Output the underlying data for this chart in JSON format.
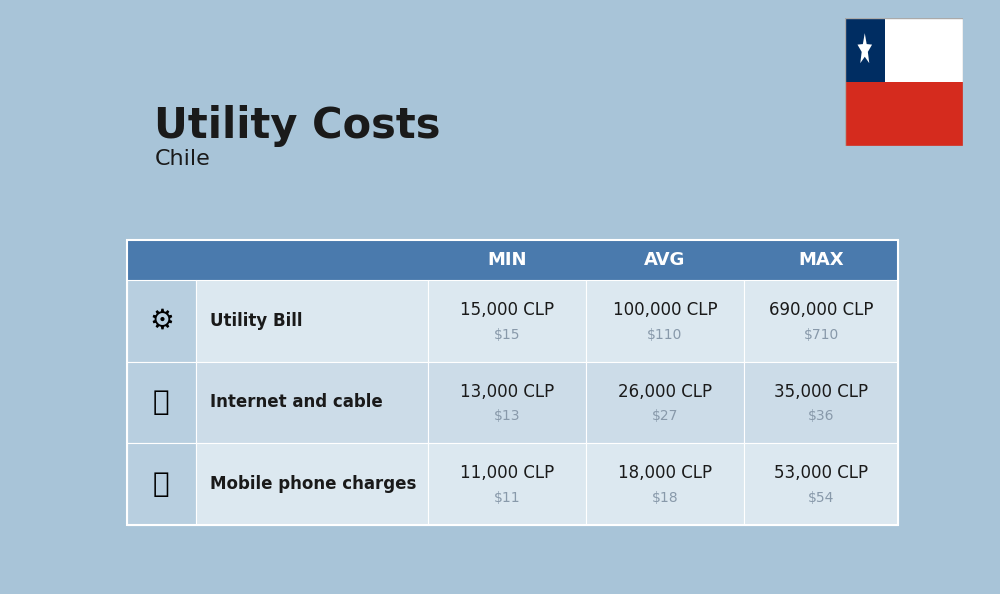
{
  "title": "Utility Costs",
  "subtitle": "Chile",
  "background_color": "#a8c4d8",
  "header_color": "#4a7aad",
  "header_text_color": "#ffffff",
  "row_colors": [
    "#dce8f0",
    "#ccdce8"
  ],
  "icon_col_color": "#b8cfe0",
  "text_color": "#1a1a1a",
  "secondary_text_color": "#8899aa",
  "columns": [
    "MIN",
    "AVG",
    "MAX"
  ],
  "rows": [
    {
      "label": "Utility Bill",
      "min_clp": "15,000 CLP",
      "min_usd": "$15",
      "avg_clp": "100,000 CLP",
      "avg_usd": "$110",
      "max_clp": "690,000 CLP",
      "max_usd": "$710"
    },
    {
      "label": "Internet and cable",
      "min_clp": "13,000 CLP",
      "min_usd": "$13",
      "avg_clp": "26,000 CLP",
      "avg_usd": "$27",
      "max_clp": "35,000 CLP",
      "max_usd": "$36"
    },
    {
      "label": "Mobile phone charges",
      "min_clp": "11,000 CLP",
      "min_usd": "$11",
      "avg_clp": "18,000 CLP",
      "avg_usd": "$18",
      "max_clp": "53,000 CLP",
      "max_usd": "$54"
    }
  ],
  "flag_white": "#ffffff",
  "flag_red": "#d52b1e",
  "flag_blue": "#002d62"
}
